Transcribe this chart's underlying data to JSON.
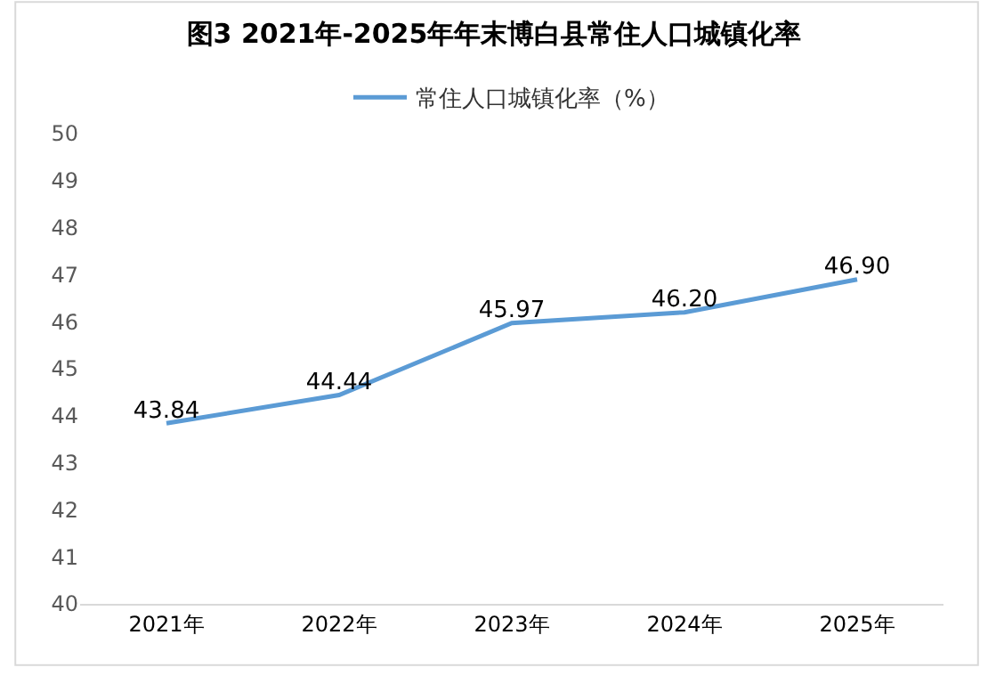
{
  "chart_data": {
    "type": "line",
    "title": "图3 2021年-2025年年末博白县常住人口城镇化率",
    "categories": [
      "2021年",
      "2022年",
      "2023年",
      "2024年",
      "2025年"
    ],
    "series": [
      {
        "name": "常住人口城镇化率（%）",
        "color": "#5b9bd5",
        "values": [
          43.84,
          44.44,
          45.97,
          46.2,
          46.9
        ],
        "value_labels": [
          "43.84",
          "44.44",
          "45.97",
          "46.20",
          "46.90"
        ]
      }
    ],
    "ylim": [
      40,
      50
    ],
    "yticks": [
      40,
      41,
      42,
      43,
      44,
      45,
      46,
      47,
      48,
      49,
      50
    ],
    "legend": "top",
    "marker": "none",
    "line_style": "solid"
  }
}
